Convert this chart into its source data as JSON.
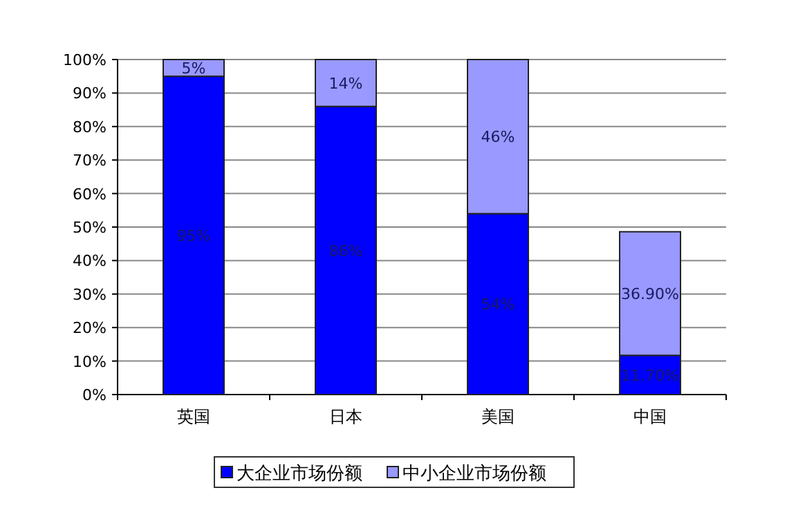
{
  "chart_data": {
    "type": "bar",
    "stacked": true,
    "categories": [
      "英国",
      "日本",
      "美国",
      "中国"
    ],
    "series": [
      {
        "name": "大企业市场份额",
        "color": "#0000ff",
        "values": [
          95,
          86,
          54,
          11.7
        ],
        "value_labels": [
          "95%",
          "86%",
          "54%",
          "11.70%"
        ]
      },
      {
        "name": "中小企业市场份额",
        "color": "#9999ff",
        "values": [
          5,
          14,
          46,
          36.9
        ],
        "value_labels": [
          "5%",
          "14%",
          "46%",
          "36.90%"
        ]
      }
    ],
    "ylim": [
      0,
      100
    ],
    "yticks": [
      {
        "value": 0,
        "label": "0%"
      },
      {
        "value": 10,
        "label": "10%"
      },
      {
        "value": 20,
        "label": "20%"
      },
      {
        "value": 30,
        "label": "30%"
      },
      {
        "value": 40,
        "label": "40%"
      },
      {
        "value": 50,
        "label": "50%"
      },
      {
        "value": 60,
        "label": "60%"
      },
      {
        "value": 70,
        "label": "70%"
      },
      {
        "value": 80,
        "label": "80%"
      },
      {
        "value": 90,
        "label": "90%"
      },
      {
        "value": 100,
        "label": "100%"
      }
    ],
    "grid": "y",
    "legend": "bottom"
  }
}
